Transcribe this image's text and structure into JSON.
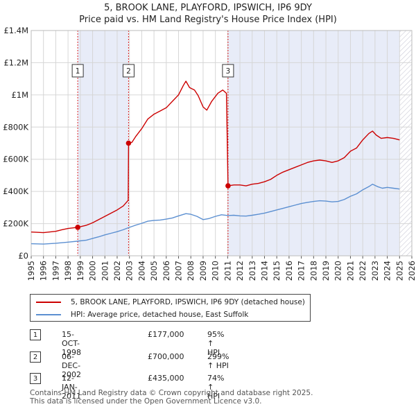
{
  "title_line1": "5, BROOK LANE, PLAYFORD, IPSWICH, IP6 9DY",
  "title_line2": "Price paid vs. HM Land Registry's House Price Index (HPI)",
  "chart_data": {
    "type": "line",
    "xlabel": "",
    "ylabel": "",
    "xlim": [
      1995,
      2026
    ],
    "ylim": [
      0,
      1400000
    ],
    "y_ticks": [
      {
        "value": 0,
        "label": "£0"
      },
      {
        "value": 200000,
        "label": "£200K"
      },
      {
        "value": 400000,
        "label": "£400K"
      },
      {
        "value": 600000,
        "label": "£600K"
      },
      {
        "value": 800000,
        "label": "£800K"
      },
      {
        "value": 1000000,
        "label": "£1M"
      },
      {
        "value": 1200000,
        "label": "£1.2M"
      },
      {
        "value": 1400000,
        "label": "£1.4M"
      }
    ],
    "x_ticks": [
      "1995",
      "1996",
      "1997",
      "1998",
      "1999",
      "2000",
      "2001",
      "2002",
      "2003",
      "2004",
      "2005",
      "2006",
      "2007",
      "2008",
      "2009",
      "2010",
      "2011",
      "2012",
      "2013",
      "2014",
      "2015",
      "2016",
      "2017",
      "2018",
      "2019",
      "2020",
      "2021",
      "2022",
      "2023",
      "2024",
      "2025",
      "2026"
    ],
    "shaded_ranges": [
      [
        1998.79,
        2002.93
      ],
      [
        2011.03,
        2025.0
      ]
    ],
    "forecast_hatch_from": 2025.0,
    "series": [
      {
        "name": "5, BROOK LANE, PLAYFORD, IPSWICH, IP6 9DY (detached house)",
        "color": "#cc0000",
        "points": [
          [
            1995.0,
            148000
          ],
          [
            1996.0,
            144000
          ],
          [
            1997.0,
            152000
          ],
          [
            1997.5,
            162000
          ],
          [
            1998.0,
            170000
          ],
          [
            1998.79,
            177000
          ],
          [
            1999.5,
            190000
          ],
          [
            2000.0,
            205000
          ],
          [
            2000.5,
            225000
          ],
          [
            2001.0,
            245000
          ],
          [
            2001.5,
            265000
          ],
          [
            2002.0,
            285000
          ],
          [
            2002.5,
            310000
          ],
          [
            2002.9,
            345000
          ],
          [
            2002.93,
            700000
          ],
          [
            2003.2,
            705000
          ],
          [
            2003.5,
            740000
          ],
          [
            2004.0,
            790000
          ],
          [
            2004.5,
            850000
          ],
          [
            2005.0,
            880000
          ],
          [
            2005.5,
            900000
          ],
          [
            2006.0,
            920000
          ],
          [
            2006.5,
            960000
          ],
          [
            2007.0,
            1000000
          ],
          [
            2007.4,
            1060000
          ],
          [
            2007.6,
            1085000
          ],
          [
            2007.9,
            1045000
          ],
          [
            2008.3,
            1030000
          ],
          [
            2008.6,
            995000
          ],
          [
            2009.0,
            925000
          ],
          [
            2009.3,
            905000
          ],
          [
            2009.7,
            960000
          ],
          [
            2010.2,
            1010000
          ],
          [
            2010.6,
            1030000
          ],
          [
            2010.9,
            1010000
          ],
          [
            2011.03,
            435000
          ],
          [
            2011.5,
            440000
          ],
          [
            2012.0,
            440000
          ],
          [
            2012.5,
            435000
          ],
          [
            2013.0,
            445000
          ],
          [
            2013.5,
            450000
          ],
          [
            2014.0,
            460000
          ],
          [
            2014.5,
            475000
          ],
          [
            2015.0,
            500000
          ],
          [
            2015.5,
            520000
          ],
          [
            2016.0,
            535000
          ],
          [
            2016.5,
            550000
          ],
          [
            2017.0,
            565000
          ],
          [
            2017.5,
            580000
          ],
          [
            2018.0,
            590000
          ],
          [
            2018.5,
            595000
          ],
          [
            2019.0,
            590000
          ],
          [
            2019.5,
            580000
          ],
          [
            2020.0,
            590000
          ],
          [
            2020.5,
            610000
          ],
          [
            2021.0,
            650000
          ],
          [
            2021.5,
            670000
          ],
          [
            2022.0,
            720000
          ],
          [
            2022.5,
            760000
          ],
          [
            2022.8,
            775000
          ],
          [
            2023.1,
            750000
          ],
          [
            2023.5,
            730000
          ],
          [
            2024.0,
            735000
          ],
          [
            2024.5,
            730000
          ],
          [
            2025.0,
            720000
          ]
        ]
      },
      {
        "name": "HPI: Average price, detached house, East Suffolk",
        "color": "#5b8fd1",
        "points": [
          [
            1995.0,
            75000
          ],
          [
            1996.0,
            73000
          ],
          [
            1997.0,
            78000
          ],
          [
            1998.0,
            85000
          ],
          [
            1998.79,
            91000
          ],
          [
            1999.5,
            97000
          ],
          [
            2000.0,
            108000
          ],
          [
            2000.5,
            118000
          ],
          [
            2001.0,
            130000
          ],
          [
            2001.5,
            140000
          ],
          [
            2002.0,
            150000
          ],
          [
            2002.5,
            162000
          ],
          [
            2002.93,
            175000
          ],
          [
            2003.5,
            190000
          ],
          [
            2004.0,
            202000
          ],
          [
            2004.5,
            215000
          ],
          [
            2005.0,
            220000
          ],
          [
            2005.5,
            222000
          ],
          [
            2006.0,
            228000
          ],
          [
            2006.5,
            235000
          ],
          [
            2007.0,
            248000
          ],
          [
            2007.6,
            262000
          ],
          [
            2008.0,
            258000
          ],
          [
            2008.5,
            245000
          ],
          [
            2009.0,
            225000
          ],
          [
            2009.5,
            232000
          ],
          [
            2010.0,
            245000
          ],
          [
            2010.5,
            255000
          ],
          [
            2011.03,
            250000
          ],
          [
            2011.5,
            252000
          ],
          [
            2012.0,
            248000
          ],
          [
            2012.5,
            247000
          ],
          [
            2013.0,
            252000
          ],
          [
            2013.5,
            258000
          ],
          [
            2014.0,
            265000
          ],
          [
            2014.5,
            275000
          ],
          [
            2015.0,
            285000
          ],
          [
            2015.5,
            295000
          ],
          [
            2016.0,
            305000
          ],
          [
            2016.5,
            315000
          ],
          [
            2017.0,
            325000
          ],
          [
            2017.5,
            332000
          ],
          [
            2018.0,
            338000
          ],
          [
            2018.5,
            342000
          ],
          [
            2019.0,
            340000
          ],
          [
            2019.5,
            335000
          ],
          [
            2020.0,
            338000
          ],
          [
            2020.5,
            350000
          ],
          [
            2021.0,
            370000
          ],
          [
            2021.5,
            385000
          ],
          [
            2022.0,
            410000
          ],
          [
            2022.5,
            430000
          ],
          [
            2022.8,
            445000
          ],
          [
            2023.2,
            430000
          ],
          [
            2023.6,
            420000
          ],
          [
            2024.0,
            425000
          ],
          [
            2024.5,
            420000
          ],
          [
            2025.0,
            415000
          ]
        ]
      }
    ],
    "annotations": [
      {
        "label": "1",
        "x": 1998.79,
        "y": 177000
      },
      {
        "label": "2",
        "x": 2002.93,
        "y": 700000
      },
      {
        "label": "3",
        "x": 2011.03,
        "y": 435000
      }
    ]
  },
  "legend": {
    "items": [
      {
        "label": "5, BROOK LANE, PLAYFORD, IPSWICH, IP6 9DY (detached house)",
        "color": "#cc0000"
      },
      {
        "label": "HPI: Average price, detached house, East Suffolk",
        "color": "#5b8fd1"
      }
    ]
  },
  "transactions": [
    {
      "num": "1",
      "date": "15-OCT-1998",
      "price": "£177,000",
      "hpi": "95% ↑ HPI"
    },
    {
      "num": "2",
      "date": "06-DEC-2002",
      "price": "£700,000",
      "hpi": "299% ↑ HPI"
    },
    {
      "num": "3",
      "date": "12-JAN-2011",
      "price": "£435,000",
      "hpi": "74% ↑ HPI"
    }
  ],
  "footer": {
    "line1": "Contains HM Land Registry data © Crown copyright and database right 2025.",
    "line2": "This data is licensed under the Open Government Licence v3.0."
  }
}
